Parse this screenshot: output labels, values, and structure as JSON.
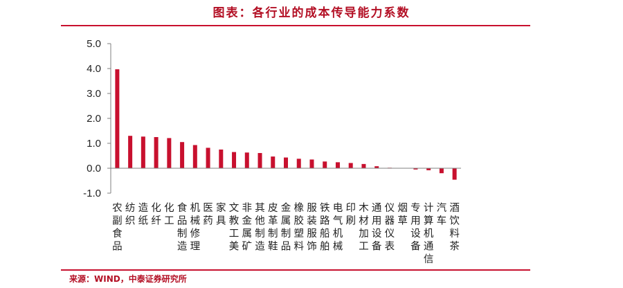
{
  "title": "图表：各行业的成本传导能力系数",
  "source": "来源：WIND，中泰证券研究所",
  "colors": {
    "accent": "#c8102e",
    "bar": "#c8102e",
    "axis": "#7f7f7f"
  },
  "chart_data": {
    "type": "bar",
    "ylim": [
      -1.0,
      5.0
    ],
    "yticks": [
      "5.0",
      "4.0",
      "3.0",
      "2.0",
      "1.0",
      "0.0",
      "-1.0"
    ],
    "grid": false,
    "categories": [
      "农副食品",
      "纺织",
      "造纸",
      "化纤",
      "化工",
      "食品制造",
      "机械修理",
      "医药",
      "家具",
      "文教工美",
      "非金属矿",
      "其他制造",
      "皮革制鞋",
      "金属制品",
      "橡胶塑料",
      "服装服饰",
      "铁路船舶",
      "电气机械",
      "印刷",
      "木材加工",
      "通用设备",
      "仪器仪表",
      "烟草",
      "专用设备",
      "计算机通信",
      "汽车",
      "酒饮料茶"
    ],
    "values": [
      3.97,
      1.3,
      1.27,
      1.25,
      1.21,
      1.05,
      0.93,
      0.82,
      0.75,
      0.65,
      0.63,
      0.61,
      0.47,
      0.43,
      0.38,
      0.35,
      0.27,
      0.24,
      0.21,
      0.17,
      0.08,
      0.02,
      0.01,
      -0.05,
      -0.08,
      -0.2,
      -0.46
    ]
  }
}
